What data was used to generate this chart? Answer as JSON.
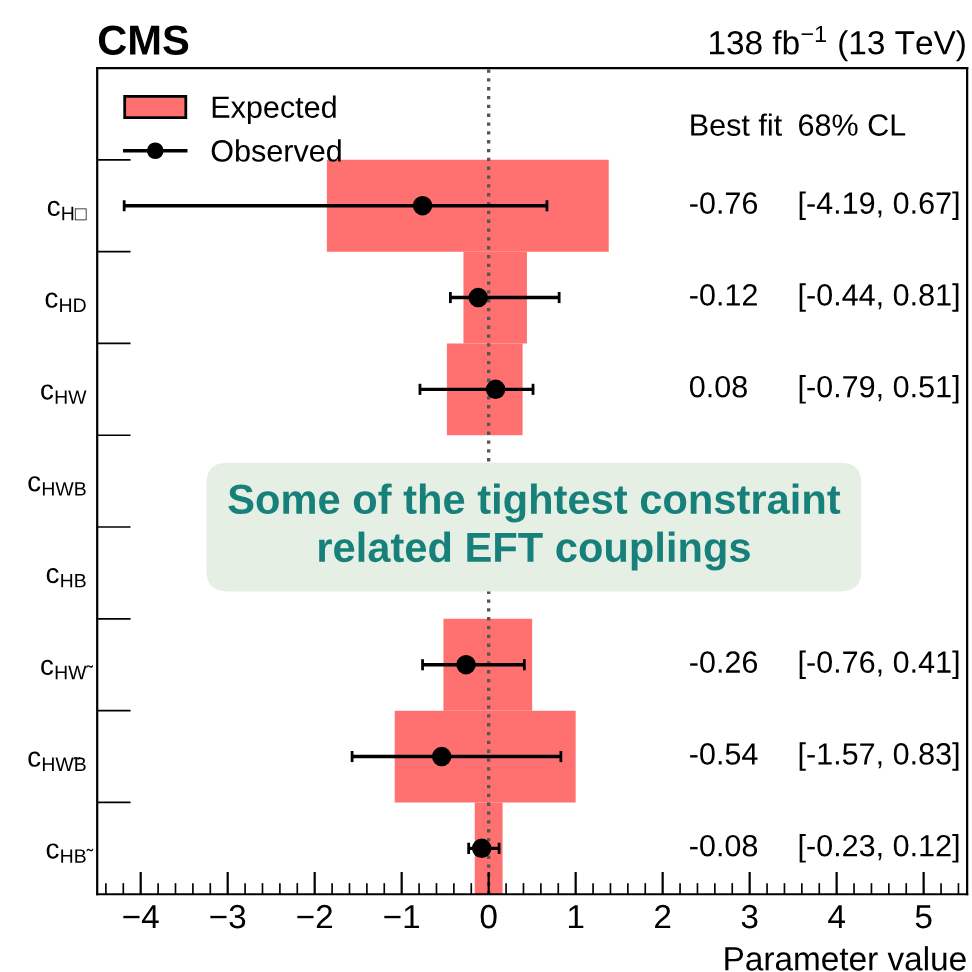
{
  "chart_data": {
    "type": "bar",
    "orientation": "horizontal",
    "title": "CMS",
    "subtitle": "138 fb$^{−1}$ (13 TeV)",
    "xlabel": "Parameter value",
    "categories": [
      "c$_{H□}$",
      "c$_{HD}$",
      "c$_{HW}$",
      "c$_{HWB}$",
      "c$_{HB}$",
      "c$_{HW̃}$",
      "c$_{HW̃B}$",
      "c$_{HB̃}$"
    ],
    "series": [
      {
        "name": "Expected",
        "color": "#ff7070",
        "base": [
          -1.86,
          -0.29,
          -0.48,
          null,
          null,
          -0.52,
          -1.08,
          -0.16
        ],
        "values": [
          3.24,
          0.73,
          0.87,
          null,
          null,
          1.02,
          2.08,
          0.32
        ]
      },
      {
        "name": "Observed",
        "type": "scatter",
        "color": "#000000",
        "marker": "circle",
        "values": [
          -0.76,
          -0.12,
          0.08,
          null,
          null,
          -0.26,
          -0.54,
          -0.08
        ],
        "errors": [
          [
            -4.19,
            0.67
          ],
          [
            -0.44,
            0.81
          ],
          [
            -0.79,
            0.51
          ],
          null,
          null,
          [
            -0.76,
            0.41
          ],
          [
            -1.57,
            0.83
          ],
          [
            -0.23,
            0.12
          ]
        ]
      }
    ],
    "annotations": [
      "Best fit",
      "68% CL",
      "-0.76",
      "[-4.19, 0.67]",
      "-0.12",
      "[-0.44, 0.81]",
      "0.08",
      "[-0.79, 0.51]",
      "-0.26",
      "[-0.76, 0.41]",
      "-0.54",
      "[-1.57, 0.83]",
      "-0.08",
      "[-0.23, 0.12]",
      "Some of the tightest constraint\nrelated EFT couplings"
    ],
    "ref_lines": [
      {
        "axis": "x",
        "value": 0,
        "color": "#555555",
        "line_style": "dotted"
      }
    ],
    "xlim": [
      -4.5,
      5.5
    ],
    "xticks": [
      {
        "value": -4,
        "label": "−4"
      },
      {
        "value": -3,
        "label": "−3"
      },
      {
        "value": -2,
        "label": "−2"
      },
      {
        "value": -1,
        "label": "−1"
      },
      0,
      1,
      2,
      3,
      4,
      5
    ],
    "grid": false,
    "legend": "top left"
  }
}
